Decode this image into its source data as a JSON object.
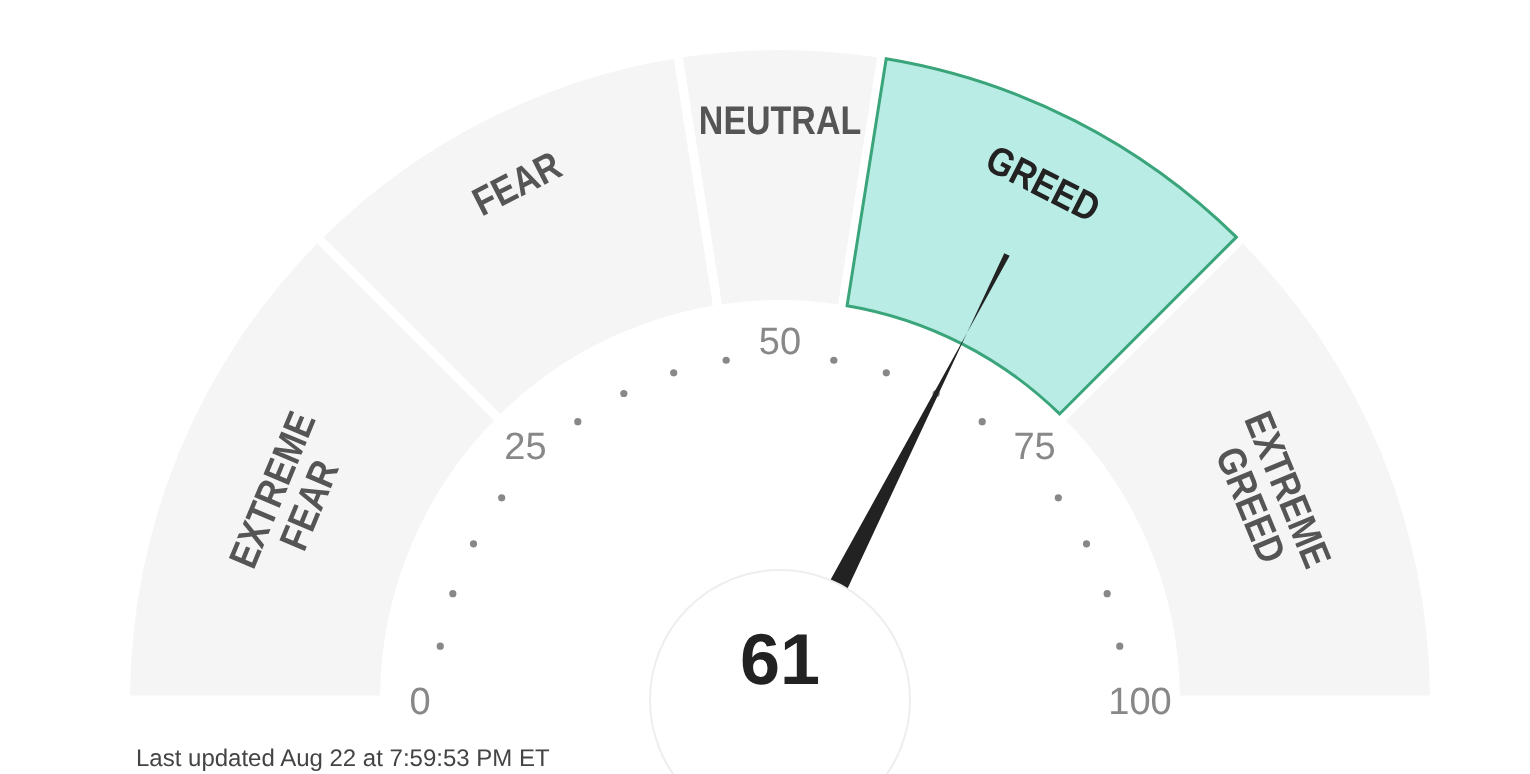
{
  "chart_data": {
    "type": "donut",
    "categories": [
      "EXTREME FEAR",
      "FEAR",
      "NEUTRAL",
      "GREED",
      "EXTREME GREED"
    ],
    "values": [
      25,
      20,
      10,
      20,
      25
    ],
    "colors": [
      "#f5f5f5",
      "#f5f5f5",
      "#f5f5f5",
      "#b9ece5",
      "#f5f5f5"
    ],
    "needle": "GREED",
    "annotations": [
      "0",
      "25",
      "50",
      "75",
      "100",
      "61",
      "Last updated Aug 22 at 7:59:53 PM ET"
    ]
  }
}
